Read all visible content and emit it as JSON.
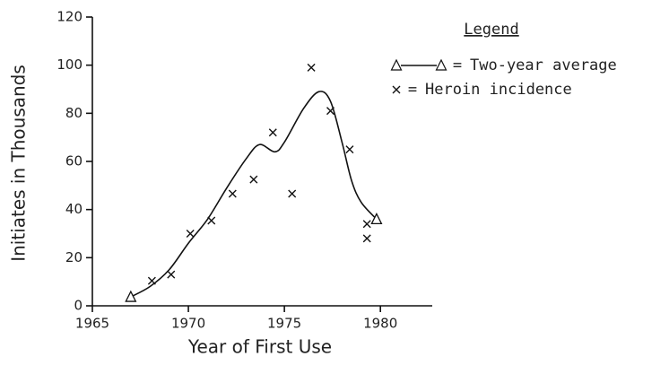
{
  "chart_data": {
    "type": "scatter",
    "xlabel": "Year of First Use",
    "ylabel": "Initiates in Thousands",
    "xlim": [
      1965,
      1982.7
    ],
    "xticks": [
      1965,
      1970,
      1975,
      1980
    ],
    "ylim": [
      0,
      120
    ],
    "yticks": [
      0,
      20,
      40,
      60,
      80,
      100,
      120
    ],
    "legend_title": "Legend",
    "legend_position": "upper right",
    "legend_separator": "=",
    "color": "#111111",
    "series": [
      {
        "name": "Two-year average",
        "marker": "triangle",
        "mode": "line",
        "x": [
          1967.0,
          1968.0,
          1969.0,
          1970.0,
          1971.0,
          1972.0,
          1973.0,
          1973.7,
          1974.5,
          1975.0,
          1976.0,
          1976.8,
          1977.4,
          1978.0,
          1978.5,
          1979.0,
          1979.8
        ],
        "values": [
          3.7,
          8,
          15,
          26,
          36,
          49,
          61,
          67,
          64,
          68,
          82,
          89,
          85,
          68,
          52,
          43,
          36
        ]
      },
      {
        "name": "Heroin incidence",
        "marker": "x",
        "mode": "markers",
        "x": [
          1968.1,
          1969.1,
          1970.1,
          1971.2,
          1972.3,
          1973.4,
          1974.4,
          1975.4,
          1976.4,
          1977.4,
          1978.4,
          1979.3,
          1979.3
        ],
        "values": [
          10.4,
          13,
          30,
          35.4,
          46.6,
          52.5,
          72,
          46.6,
          99,
          81,
          65,
          34,
          28
        ]
      }
    ]
  }
}
